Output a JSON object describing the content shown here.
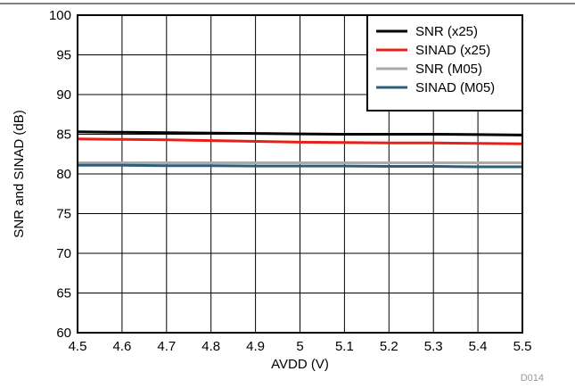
{
  "chart_data": {
    "type": "line",
    "xlabel": "AVDD (V)",
    "ylabel": "SNR and SINAD (dB)",
    "xlim": [
      4.5,
      5.5
    ],
    "ylim": [
      60,
      100
    ],
    "x_ticks": [
      "4.5",
      "4.6",
      "4.7",
      "4.8",
      "4.9",
      "5",
      "5.1",
      "5.2",
      "5.3",
      "5.4",
      "5.5"
    ],
    "y_ticks": [
      "60",
      "65",
      "70",
      "75",
      "80",
      "85",
      "90",
      "95",
      "100"
    ],
    "grid": true,
    "legend_position": "top-right",
    "figure_id": "D014",
    "x": [
      4.5,
      4.6,
      4.7,
      4.8,
      4.9,
      5.0,
      5.1,
      5.2,
      5.3,
      5.4,
      5.5
    ],
    "series": [
      {
        "name": "SNR (x25)",
        "color": "#000000",
        "values": [
          85.3,
          85.25,
          85.2,
          85.15,
          85.1,
          85.05,
          85.0,
          85.0,
          85.0,
          84.95,
          84.9
        ]
      },
      {
        "name": "SINAD (x25)",
        "color": "#e8201a",
        "values": [
          84.4,
          84.35,
          84.3,
          84.2,
          84.1,
          84.0,
          83.95,
          83.9,
          83.9,
          83.85,
          83.8
        ]
      },
      {
        "name": "SNR (M05)",
        "color": "#aaaaaa",
        "values": [
          81.4,
          81.4,
          81.4,
          81.4,
          81.4,
          81.4,
          81.4,
          81.4,
          81.4,
          81.4,
          81.4
        ]
      },
      {
        "name": "SINAD (M05)",
        "color": "#2e5f7a",
        "values": [
          81.1,
          81.1,
          81.05,
          81.05,
          81.0,
          81.0,
          81.0,
          80.95,
          80.95,
          80.9,
          80.9
        ]
      }
    ]
  }
}
